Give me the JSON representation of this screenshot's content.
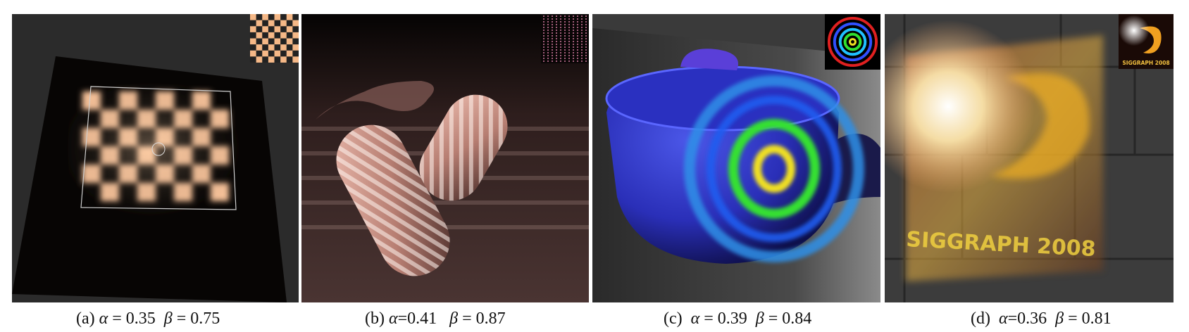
{
  "figure": {
    "panels": [
      {
        "id": "a",
        "label": "(a)",
        "alpha_sym": "α",
        "alpha": "0.35",
        "beta_sym": "β",
        "beta": "0.75",
        "eq": "="
      },
      {
        "id": "b",
        "label": "(b)",
        "alpha_sym": "α",
        "alpha": "0.41",
        "beta_sym": "β",
        "beta": "0.87",
        "eq": "="
      },
      {
        "id": "c",
        "label": "(c)",
        "alpha_sym": "α",
        "alpha": "0.39",
        "beta_sym": "β",
        "beta": "0.84",
        "eq": "="
      },
      {
        "id": "d",
        "label": "(d)",
        "alpha_sym": "α",
        "alpha": "0.36",
        "beta_sym": "β",
        "beta": "0.81",
        "eq": "="
      }
    ],
    "logo_text": "SIGGRAPH 2008",
    "projected_text": "SIGGRAPH 2008"
  }
}
